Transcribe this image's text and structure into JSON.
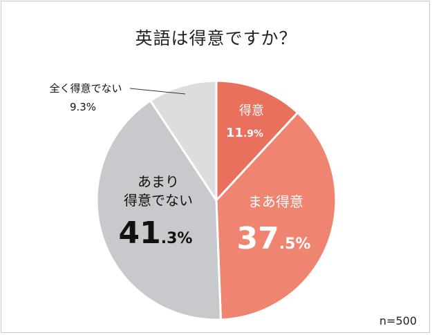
{
  "chart_data": {
    "type": "pie",
    "title": "英語は得意ですか？",
    "sample_note": "n=500",
    "start": "12 o'clock",
    "direction": "clockwise",
    "slices": [
      {
        "label": "得意",
        "label_lines": [
          "得意"
        ],
        "value": 11.9,
        "int": "11",
        "dec": ".9%",
        "color": "#e8705c",
        "text_color": "#ffffff"
      },
      {
        "label": "まあ得意",
        "label_lines": [
          "まあ得意"
        ],
        "value": 37.5,
        "int": "37",
        "dec": ".5%",
        "color": "#ef8470",
        "text_color": "#ffffff"
      },
      {
        "label": "あまり得意でない",
        "label_lines": [
          "あまり",
          "得意でない"
        ],
        "value": 41.3,
        "int": "41",
        "dec": ".3%",
        "color": "#c8c9cc",
        "text_color": "#111111"
      },
      {
        "label": "全く得意でない",
        "label_lines": [
          "全く得意でない"
        ],
        "value": 9.3,
        "int": "",
        "dec": "9.3%",
        "color": "#dcdddf",
        "text_color": "#111111"
      }
    ]
  }
}
